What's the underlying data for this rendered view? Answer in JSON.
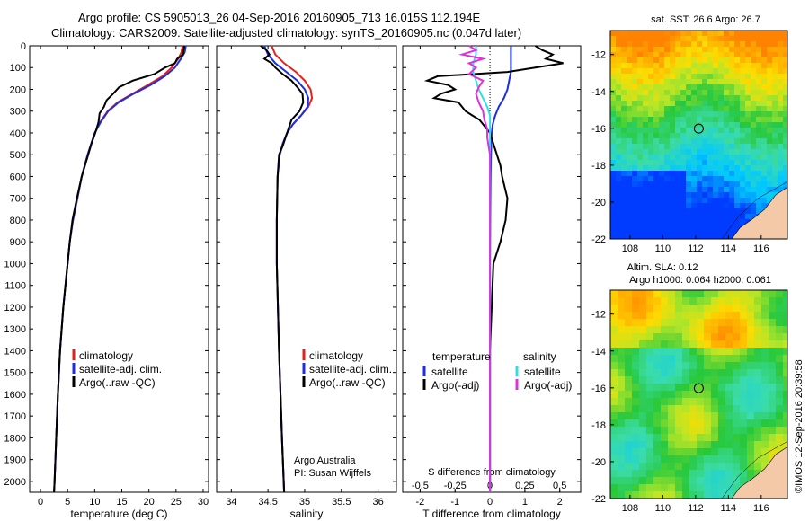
{
  "header": {
    "line1": "Argo profile: CS 5905013_26 04-Sep-2016 20160905_713 16.015S 112.194E",
    "line2": "Climatology: CARS2009. Satellite-adjusted climatology: synTS_20160905.nc (0.047d later)"
  },
  "depth_ticks": [
    0,
    100,
    200,
    300,
    400,
    500,
    600,
    700,
    800,
    900,
    1000,
    1100,
    1200,
    1300,
    1400,
    1500,
    1600,
    1700,
    1800,
    1900,
    2000
  ],
  "colors": {
    "climatology": "#e8201a",
    "satellite": "#1a2ee8",
    "argo": "#000000",
    "satellite_s": "#2ee0e0",
    "argo_s": "#e030e0"
  },
  "chart_data": [
    {
      "type": "line",
      "id": "temperature",
      "xlabel": "temperature (deg C)",
      "xlim": [
        -2,
        31
      ],
      "ylim": [
        0,
        2050
      ],
      "y_inverted": true,
      "x_ticks": [
        0,
        5,
        10,
        15,
        20,
        25,
        30
      ],
      "legend": [
        {
          "label": "climatology"
        },
        {
          "label": "satellite-adj. clim."
        },
        {
          "label": "Argo(..raw -QC)"
        }
      ],
      "series": [
        {
          "name": "climatology",
          "color_key": "climatology",
          "depth": [
            0,
            30,
            60,
            100,
            140,
            180,
            220,
            260,
            300,
            350,
            400,
            500,
            600,
            700,
            800,
            900,
            1000,
            1200,
            1400,
            1600,
            1800,
            2000,
            2050
          ],
          "x": [
            26.2,
            26.0,
            25.4,
            24.2,
            22.5,
            19.8,
            17.0,
            14.2,
            12.4,
            11.0,
            10.0,
            8.7,
            7.6,
            6.8,
            6.0,
            5.4,
            5.0,
            4.2,
            3.6,
            3.2,
            2.9,
            2.6,
            2.5
          ]
        },
        {
          "name": "satellite-adj. clim.",
          "color_key": "satellite",
          "depth": [
            0,
            30,
            60,
            100,
            140,
            180,
            220,
            260,
            300,
            350,
            400,
            500,
            600,
            700,
            800,
            900,
            1000,
            1200,
            1400,
            1600,
            1800,
            2000,
            2050
          ],
          "x": [
            26.8,
            26.6,
            25.9,
            24.8,
            22.9,
            20.3,
            17.2,
            14.4,
            12.5,
            11.1,
            10.0,
            8.7,
            7.6,
            6.8,
            6.0,
            5.4,
            5.0,
            4.2,
            3.6,
            3.2,
            2.9,
            2.6,
            2.5
          ]
        },
        {
          "name": "Argo",
          "color_key": "argo",
          "depth": [
            0,
            20,
            40,
            60,
            80,
            100,
            130,
            160,
            190,
            220,
            250,
            280,
            310,
            350,
            400,
            450,
            500,
            600,
            700,
            800,
            900,
            1000,
            1200,
            1400,
            1600,
            1800,
            2000,
            2050
          ],
          "x": [
            26.5,
            26.4,
            26.3,
            25.2,
            24.8,
            23.0,
            21.0,
            17.0,
            14.5,
            13.4,
            12.2,
            11.7,
            10.9,
            10.7,
            10.1,
            9.4,
            8.8,
            7.6,
            6.7,
            5.9,
            5.4,
            5.0,
            4.2,
            3.6,
            3.2,
            2.9,
            2.6,
            2.5
          ]
        }
      ]
    },
    {
      "type": "line",
      "id": "salinity",
      "xlabel": "salinity",
      "xlim": [
        33.8,
        36.25
      ],
      "ylim": [
        0,
        2050
      ],
      "y_inverted": true,
      "x_ticks": [
        34,
        34.5,
        35,
        35.5,
        36
      ],
      "legend": [
        {
          "label": "climatology"
        },
        {
          "label": "satellite-adj. clim."
        },
        {
          "label": "Argo(..raw -QC)"
        }
      ],
      "annotation": [
        "Argo Australia",
        "PI: Susan Wijffels"
      ],
      "series": [
        {
          "name": "climatology",
          "color_key": "climatology",
          "depth": [
            0,
            40,
            80,
            120,
            160,
            200,
            240,
            280,
            320,
            360,
            400,
            450,
            500,
            600,
            800,
            1000,
            1400,
            1800,
            2050
          ],
          "x": [
            34.55,
            34.6,
            34.72,
            34.88,
            35.0,
            35.08,
            35.1,
            35.05,
            34.95,
            34.84,
            34.76,
            34.7,
            34.66,
            34.63,
            34.62,
            34.62,
            34.65,
            34.69,
            34.72
          ]
        },
        {
          "name": "satellite-adj. clim.",
          "color_key": "satellite",
          "depth": [
            0,
            40,
            80,
            120,
            160,
            200,
            240,
            280,
            320,
            360,
            400,
            450,
            500,
            600,
            800,
            1000,
            1400,
            1800,
            2050
          ],
          "x": [
            34.45,
            34.5,
            34.6,
            34.75,
            34.9,
            35.0,
            35.05,
            35.04,
            34.95,
            34.84,
            34.76,
            34.7,
            34.66,
            34.63,
            34.62,
            34.62,
            34.65,
            34.69,
            34.72
          ]
        },
        {
          "name": "Argo",
          "color_key": "argo",
          "depth": [
            0,
            20,
            40,
            60,
            80,
            100,
            130,
            160,
            190,
            220,
            260,
            300,
            340,
            380,
            420,
            460,
            500,
            600,
            800,
            1000,
            1400,
            1800,
            2050
          ],
          "x": [
            34.4,
            34.48,
            34.52,
            34.45,
            34.55,
            34.6,
            34.7,
            34.82,
            34.9,
            34.97,
            34.98,
            34.93,
            34.82,
            34.78,
            34.74,
            34.7,
            34.65,
            34.63,
            34.62,
            34.62,
            34.65,
            34.69,
            34.72
          ]
        }
      ]
    },
    {
      "type": "line",
      "id": "differences",
      "xlabel": "T difference from climatology",
      "xlabel_top": "S difference from climatology",
      "xlim": [
        -2.5,
        2.6
      ],
      "ylim": [
        0,
        2050
      ],
      "y_inverted": true,
      "x_ticks": [
        -2,
        -1,
        0,
        1,
        2
      ],
      "s_ticks": [
        -0.5,
        -0.25,
        0,
        0.25,
        0.5
      ],
      "s_tick_labels": [
        "-0.5",
        "-0.25",
        "0",
        "0.25",
        "0.5"
      ],
      "legend_headers": [
        "temperature",
        "salinity"
      ],
      "legend": [
        {
          "label": "satellite"
        },
        {
          "label": "Argo(-adj)"
        },
        {
          "label": "satellite"
        },
        {
          "label": "Argo(-adj)"
        }
      ],
      "series": [
        {
          "name": "satellite",
          "quantity": "temperature",
          "color_key": "satellite",
          "depth": [
            0,
            40,
            80,
            120,
            160,
            200,
            240,
            280,
            320,
            360,
            400,
            500,
            600,
            800,
            1000,
            1400,
            2050
          ],
          "x": [
            0.6,
            0.6,
            0.6,
            0.6,
            0.55,
            0.5,
            0.4,
            0.25,
            0.15,
            0.08,
            0.05,
            0.03,
            0.02,
            0.01,
            0,
            0,
            0
          ]
        },
        {
          "name": "Argo(-adj)",
          "quantity": "temperature",
          "color_key": "argo",
          "depth": [
            0,
            20,
            40,
            60,
            80,
            100,
            120,
            140,
            160,
            180,
            200,
            220,
            240,
            260,
            280,
            300,
            320,
            340,
            360,
            380,
            400,
            450,
            500,
            550,
            600,
            700,
            800,
            900,
            1000,
            1200,
            1400,
            1600,
            1800,
            2050
          ],
          "x": [
            1.3,
            1.5,
            1.8,
            1.6,
            2.1,
            1.3,
            0.5,
            -1.5,
            -1.8,
            -1.2,
            -1.0,
            -1.4,
            -1.6,
            -0.9,
            -0.8,
            -0.7,
            -0.5,
            -0.3,
            -0.2,
            -0.1,
            0.0,
            0.1,
            0.2,
            0.3,
            0.35,
            0.5,
            0.45,
            0.3,
            0.1,
            0.05,
            0,
            0,
            0,
            0
          ]
        },
        {
          "name": "satellite",
          "quantity": "salinity",
          "color_key": "satellite_s",
          "depth": [
            0,
            40,
            80,
            120,
            160,
            200,
            240,
            280,
            320,
            360,
            400,
            500,
            600,
            800,
            1000,
            1400,
            2050
          ],
          "x": [
            -0.1,
            -0.1,
            -0.12,
            -0.12,
            -0.1,
            -0.08,
            -0.05,
            -0.02,
            0,
            0,
            0,
            0,
            0,
            0,
            0,
            0,
            0
          ]
        },
        {
          "name": "Argo(-adj)",
          "quantity": "salinity",
          "color_key": "argo_s",
          "depth": [
            0,
            20,
            40,
            60,
            80,
            100,
            130,
            160,
            190,
            220,
            260,
            300,
            340,
            380,
            420,
            460,
            500,
            600,
            800,
            1000,
            1400,
            1800,
            2050
          ],
          "x": [
            -0.15,
            -0.1,
            -0.2,
            -0.05,
            -0.15,
            -0.1,
            -0.15,
            -0.05,
            -0.08,
            -0.1,
            -0.08,
            -0.05,
            -0.04,
            -0.02,
            -0.02,
            -0.01,
            0,
            0,
            0,
            0,
            0,
            0,
            0
          ]
        }
      ]
    },
    {
      "type": "heatmap",
      "id": "sst_map",
      "title": "sat. SST: 26.6 Argo: 26.7",
      "xlim": [
        106.8,
        117.6
      ],
      "ylim": [
        -22,
        -10.7
      ],
      "x_ticks": [
        108,
        110,
        112,
        114,
        116
      ],
      "y_ticks": [
        -12,
        -14,
        -16,
        -18,
        -20,
        -22
      ],
      "marker": {
        "lon": 112.194,
        "lat": -16.015
      }
    },
    {
      "type": "heatmap",
      "id": "sla_map",
      "title_lines": [
        "Altim. SLA: 0.12",
        "Argo h1000: 0.064 h2000: 0.061"
      ],
      "xlim": [
        106.8,
        117.6
      ],
      "ylim": [
        -22,
        -10.7
      ],
      "x_ticks": [
        108,
        110,
        112,
        114,
        116
      ],
      "y_ticks": [
        -12,
        -14,
        -16,
        -18,
        -20,
        -22
      ],
      "marker": {
        "lon": 112.194,
        "lat": -16.015
      }
    }
  ],
  "sidebar_text": "©IMOS 12-Sep-2016 20:39:58"
}
